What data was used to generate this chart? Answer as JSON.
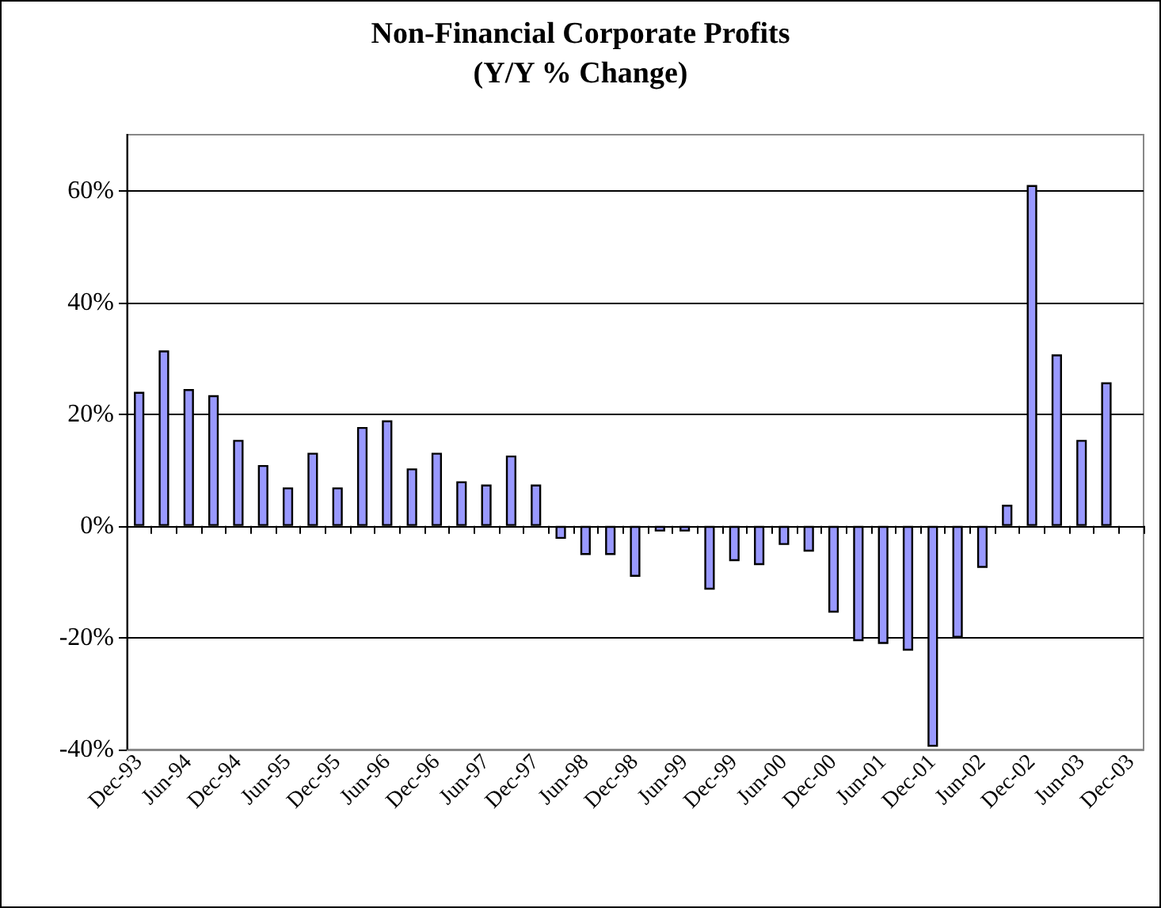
{
  "chart_data": {
    "type": "bar",
    "title": "Non-Financial Corporate Profits",
    "subtitle": "(Y/Y % Change)",
    "categories": [
      "Dec-93",
      null,
      "Jun-94",
      null,
      "Dec-94",
      null,
      "Jun-95",
      null,
      "Dec-95",
      null,
      "Jun-96",
      null,
      "Dec-96",
      null,
      "Jun-97",
      null,
      "Dec-97",
      null,
      "Jun-98",
      null,
      "Dec-98",
      null,
      "Jun-99",
      null,
      "Dec-99",
      null,
      "Jun-00",
      null,
      "Dec-00",
      null,
      "Jun-01",
      null,
      "Dec-01",
      null,
      "Jun-02",
      null,
      "Dec-02",
      null,
      "Jun-03",
      null,
      "Dec-03"
    ],
    "values": [
      24,
      31.4,
      24.5,
      23.4,
      15.4,
      10.9,
      6.9,
      13.1,
      6.9,
      17.7,
      18.9,
      10.3,
      13.1,
      8,
      7.4,
      12.6,
      7.4,
      -2.3,
      -5.2,
      -5.2,
      -9.1,
      -1,
      -1,
      -11.4,
      -6.3,
      -7,
      -3.4,
      -4.6,
      -15.5,
      -20.6,
      -21.1,
      -22.3,
      -39.5,
      -20,
      -7.5,
      3.8,
      61,
      30.7,
      15.4,
      25.7,
      null
    ],
    "color": "#9999ff",
    "ylim": [
      -40,
      70
    ],
    "yticks": [
      {
        "value": -40,
        "label": "-40%"
      },
      {
        "value": -20,
        "label": "-20%"
      },
      {
        "value": 0,
        "label": "0%"
      },
      {
        "value": 20,
        "label": "20%"
      },
      {
        "value": 40,
        "label": "40%"
      },
      {
        "value": 60,
        "label": "60%"
      }
    ],
    "grid": "y"
  }
}
